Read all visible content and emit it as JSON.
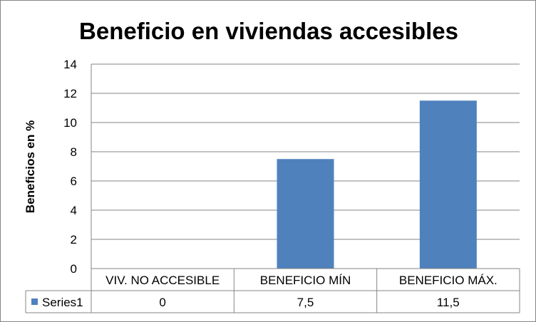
{
  "chart_data": {
    "type": "bar",
    "title": "Beneficio en viviendas accesibles",
    "xlabel": "",
    "ylabel": "Beneficios en %",
    "ylim": [
      0,
      14
    ],
    "yticks": [
      0,
      2,
      4,
      6,
      8,
      10,
      12,
      14
    ],
    "grid": true,
    "categories": [
      "VIV. NO ACCESIBLE",
      "BENEFICIO MÍN",
      "BENEFICIO MÁX."
    ],
    "series": [
      {
        "name": "Series1",
        "values": [
          0,
          7.5,
          11.5
        ],
        "value_labels": [
          "0",
          "7,5",
          "11,5"
        ],
        "color": "#4F81BD"
      }
    ],
    "data_table": true
  }
}
